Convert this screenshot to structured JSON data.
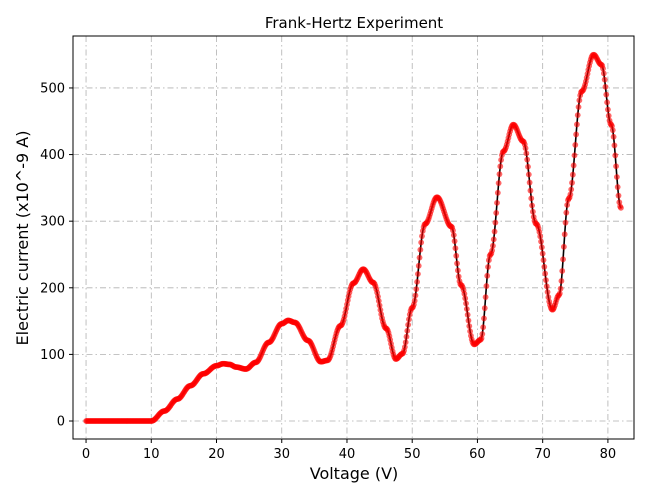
{
  "chart_data": {
    "type": "scatter",
    "title": "Frank-Hertz Experiment",
    "xlabel": "Voltage (V)",
    "ylabel": "Electric current (x10^-9 A)",
    "xlim": [
      -2.0,
      84.0
    ],
    "ylim": [
      -27.0,
      578.0
    ],
    "xticks": [
      0,
      10,
      20,
      30,
      40,
      50,
      60,
      70,
      80
    ],
    "yticks": [
      0,
      100,
      200,
      300,
      400,
      500
    ],
    "grid": true,
    "grid_style": "dash-dot",
    "series": [
      {
        "marker_color": "#ff0000",
        "line_color": "#000000",
        "x_range": [
          0,
          82
        ],
        "points": [
          [
            0,
            0
          ],
          [
            10,
            0
          ],
          [
            12,
            15
          ],
          [
            14,
            33
          ],
          [
            16,
            53
          ],
          [
            18,
            71
          ],
          [
            20,
            83
          ],
          [
            21,
            86
          ],
          [
            22,
            85
          ],
          [
            23,
            81
          ],
          [
            24.5,
            78
          ],
          [
            26,
            88
          ],
          [
            28,
            118
          ],
          [
            30,
            146
          ],
          [
            31,
            151
          ],
          [
            32,
            148
          ],
          [
            34,
            121
          ],
          [
            36,
            89
          ],
          [
            37,
            91
          ],
          [
            39,
            143
          ],
          [
            41,
            207
          ],
          [
            42.5,
            228
          ],
          [
            44,
            208
          ],
          [
            46,
            139
          ],
          [
            47.5,
            93
          ],
          [
            48.5,
            101
          ],
          [
            50,
            170
          ],
          [
            52,
            296
          ],
          [
            53.8,
            336
          ],
          [
            56,
            292
          ],
          [
            57.5,
            204
          ],
          [
            59.5,
            115
          ],
          [
            60.5,
            122
          ],
          [
            62,
            250
          ],
          [
            64,
            405
          ],
          [
            65.5,
            445
          ],
          [
            67,
            420
          ],
          [
            69,
            296
          ],
          [
            71.5,
            167
          ],
          [
            72.5,
            189
          ],
          [
            74,
            334
          ],
          [
            76,
            495
          ],
          [
            77.8,
            550
          ],
          [
            79,
            535
          ],
          [
            80.5,
            445
          ],
          [
            82,
            320
          ]
        ]
      }
    ]
  }
}
